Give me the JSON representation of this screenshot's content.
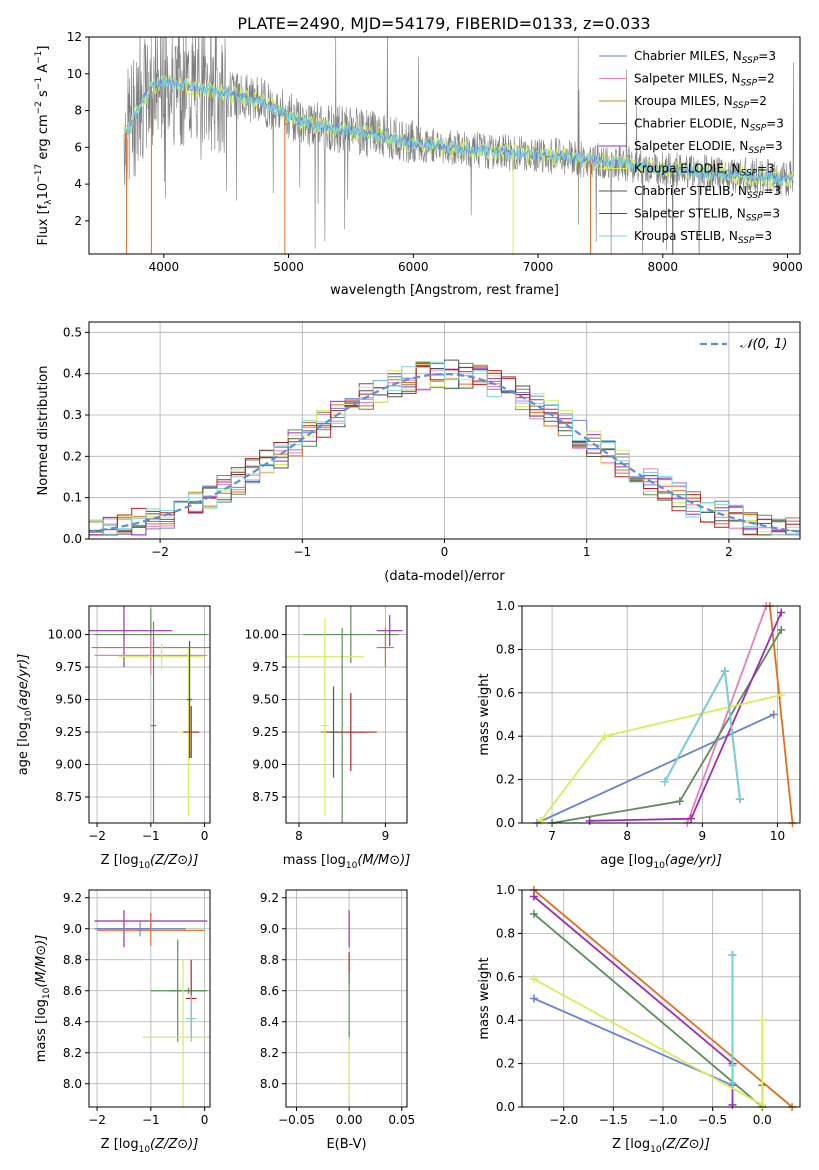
{
  "figure": {
    "title": "PLATE=2490, MJD=54179, FIBERID=0133, z=0.033"
  },
  "legend_spectrum": [
    {
      "label": "Chabrier MILES, N",
      "sub": "SSP",
      "tail": "=3",
      "color": "#6a82d9"
    },
    {
      "label": "Salpeter MILES, N",
      "sub": "SSP",
      "tail": "=2",
      "color": "#e87fbf"
    },
    {
      "label": "Kroupa MILES, N",
      "sub": "SSP",
      "tail": "=2",
      "color": "#c58a22"
    },
    {
      "label": "Chabrier ELODIE, N",
      "sub": "SSP",
      "tail": "=3",
      "color": "#5e8c5a"
    },
    {
      "label": "Salpeter ELODIE, N",
      "sub": "SSP",
      "tail": "=3",
      "color": "#9c2fb3"
    },
    {
      "label": "Kroupa ELODIE, N",
      "sub": "SSP",
      "tail": "=3",
      "color": "#d8ec5a"
    },
    {
      "label": "Chabrier STELIB, N",
      "sub": "SSP",
      "tail": "=3",
      "color": "#555555"
    },
    {
      "label": "Salpeter STELIB, N",
      "sub": "SSP",
      "tail": "=3",
      "color": "#b22222"
    },
    {
      "label": "Kroupa STELIB, N",
      "sub": "SSP",
      "tail": "=3",
      "color": "#79d3dc"
    }
  ],
  "legend_hist": {
    "label": "𝒩(0, 1)",
    "color": "#5b8fd6"
  },
  "colors": {
    "data": "#7f7f7f",
    "cmiles": "#6a82d9",
    "smiles": "#e87fbf",
    "kmiles": "#e07020",
    "celodie": "#5e8c5a",
    "selodie": "#9c2fb3",
    "kelodie": "#d8ec5a",
    "cstelib": "#555555",
    "sstelib": "#b22222",
    "kstelib": "#79d3dc",
    "gauss": "#5b8fd6",
    "grid": "#b0b0b0"
  },
  "chart_data": [
    {
      "id": "spectrum",
      "type": "line",
      "xlabel": "wavelength [Angstrom, rest frame]",
      "ylabel_main": "Flux [f",
      "ylabel_sub": "λ",
      "ylabel_tail": "10",
      "ylabel_exp": "−17",
      "ylabel_units": " erg cm",
      "ylabel_exp2": "−2",
      "ylabel_units2": " s",
      "ylabel_exp3": "−1",
      "ylabel_units3": " A",
      "ylabel_exp4": "−1",
      "ylabel_close": "]",
      "xlim": [
        3400,
        9100
      ],
      "ylim": [
        0.2,
        12
      ],
      "xticks": [
        4000,
        5000,
        6000,
        7000,
        8000,
        9000
      ],
      "yticks": [
        2,
        4,
        6,
        8,
        10,
        12
      ],
      "model_x": [
        3700,
        3800,
        3900,
        4000,
        4100,
        4200,
        4400,
        4600,
        4800,
        5000,
        5200,
        5400,
        5600,
        5800,
        6000,
        6200,
        6400,
        6600,
        6800,
        7000,
        7200,
        7400,
        7600,
        7800,
        8000,
        8200,
        8400,
        8600,
        8800,
        9000
      ],
      "model_y": [
        6.8,
        8.2,
        9.3,
        9.6,
        9.5,
        9.3,
        9.1,
        8.8,
        8.5,
        7.7,
        7.2,
        7.0,
        6.8,
        6.5,
        6.2,
        6.1,
        5.9,
        5.8,
        5.7,
        5.6,
        5.5,
        5.3,
        5.2,
        5.0,
        4.8,
        4.7,
        4.6,
        4.5,
        4.4,
        4.3
      ]
    },
    {
      "id": "residuals",
      "type": "histogram",
      "xlabel": "(data-model)/error",
      "ylabel": "Normed distribution",
      "xlim": [
        -2.5,
        2.5
      ],
      "ylim": [
        0,
        0.525
      ],
      "xticks": [
        -2,
        -1,
        0,
        1,
        2
      ],
      "yticks": [
        0.0,
        0.1,
        0.2,
        0.3,
        0.4,
        0.5
      ],
      "ytick_labels": [
        "0.0",
        "0.1",
        "0.2",
        "0.3",
        "0.4",
        "0.5"
      ],
      "bin_width": 0.1
    },
    {
      "id": "age_vs_Z",
      "type": "errorbar",
      "xlabel": "Z [log",
      "ylabel": "age  [log",
      "xlim": [
        -2.15,
        0.1
      ],
      "ylim": [
        8.55,
        10.22
      ],
      "xticks": [
        -2,
        -1,
        0
      ],
      "yticks": [
        8.75,
        9.0,
        9.25,
        9.5,
        9.75,
        10.0
      ],
      "ytick_labels": [
        "8.75",
        "9.00",
        "9.25",
        "9.50",
        "9.75",
        "10.00"
      ],
      "points": [
        {
          "x": -1.0,
          "y": 10.0,
          "xerr": 1.05,
          "yerr": 0.2,
          "series": "celodie"
        },
        {
          "x": -1.5,
          "y": 10.03,
          "xerr": 0.9,
          "yerr": 0.28,
          "series": "selodie"
        },
        {
          "x": -1.0,
          "y": 9.9,
          "xerr": 1.1,
          "yerr": 0.1,
          "series": "kmiles"
        },
        {
          "x": -1.0,
          "y": 9.84,
          "xerr": 1.05,
          "yerr": 0.15,
          "series": "smiles"
        },
        {
          "x": -0.8,
          "y": 9.83,
          "xerr": 0.8,
          "yerr": 0.1,
          "series": "kelodie"
        },
        {
          "x": -0.95,
          "y": 9.3,
          "xerr": 0.05,
          "yerr": 0.8,
          "series": "celodie"
        },
        {
          "x": -0.3,
          "y": 9.25,
          "xerr": 0.2,
          "yerr": 0.65,
          "series": "kelodie"
        },
        {
          "x": -0.28,
          "y": 9.5,
          "xerr": 0.05,
          "yerr": 0.45,
          "series": "cstelib"
        },
        {
          "x": -0.25,
          "y": 9.25,
          "xerr": 0.15,
          "yerr": 0.2,
          "series": "sstelib"
        }
      ]
    },
    {
      "id": "age_vs_mass",
      "type": "errorbar",
      "xlabel": "mass [log",
      "xlim": [
        7.85,
        9.25
      ],
      "ylim": [
        8.55,
        10.22
      ],
      "xticks": [
        8,
        9
      ],
      "yticks": [
        8.75,
        9.0,
        9.25,
        9.5,
        9.75,
        10.0
      ],
      "ytick_labels": [
        "8.75",
        "9.00",
        "9.25",
        "9.50",
        "9.75",
        "10.00"
      ],
      "points": [
        {
          "x": 8.6,
          "y": 10.0,
          "xerr": 0.55,
          "yerr": 0.22,
          "series": "celodie"
        },
        {
          "x": 9.05,
          "y": 10.03,
          "xerr": 0.15,
          "yerr": 0.12,
          "series": "selodie"
        },
        {
          "x": 8.3,
          "y": 9.83,
          "xerr": 0.45,
          "yerr": 0.3,
          "series": "kelodie"
        },
        {
          "x": 9.0,
          "y": 9.9,
          "xerr": 0.1,
          "yerr": 0.15,
          "series": "kmiles"
        },
        {
          "x": 8.5,
          "y": 9.25,
          "xerr": 0.25,
          "yerr": 0.8,
          "series": "celodie"
        },
        {
          "x": 8.6,
          "y": 9.25,
          "xerr": 0.3,
          "yerr": 0.3,
          "series": "sstelib"
        },
        {
          "x": 8.4,
          "y": 9.25,
          "xerr": 0.05,
          "yerr": 0.35,
          "series": "cstelib"
        },
        {
          "x": 8.3,
          "y": 9.3,
          "xerr": 0.05,
          "yerr": 0.7,
          "series": "kelodie"
        }
      ]
    },
    {
      "id": "weight_vs_age",
      "type": "line",
      "xlabel": "age  [log",
      "ylabel": "mass weight",
      "xlim": [
        6.6,
        10.3
      ],
      "ylim": [
        0,
        1
      ],
      "xticks": [
        7,
        8,
        9,
        10
      ],
      "yticks": [
        0.0,
        0.2,
        0.4,
        0.6,
        0.8,
        1.0
      ],
      "ytick_labels": [
        "0.0",
        "0.2",
        "0.4",
        "0.6",
        "0.8",
        "1.0"
      ],
      "series": [
        {
          "series": "cmiles",
          "x": [
            6.8,
            9.95
          ],
          "y": [
            0.0,
            0.5
          ]
        },
        {
          "series": "smiles",
          "x": [
            8.8,
            9.85
          ],
          "y": [
            0.0,
            1.0
          ]
        },
        {
          "series": "kmiles",
          "x": [
            9.9,
            10.2
          ],
          "y": [
            1.0,
            0.0
          ]
        },
        {
          "series": "celodie",
          "x": [
            7.0,
            8.7,
            10.05
          ],
          "y": [
            0.0,
            0.1,
            0.89
          ]
        },
        {
          "series": "selodie",
          "x": [
            7.5,
            8.85,
            10.05
          ],
          "y": [
            0.01,
            0.02,
            0.97
          ]
        },
        {
          "series": "kelodie",
          "x": [
            6.85,
            7.7,
            10.05
          ],
          "y": [
            0.01,
            0.4,
            0.59
          ]
        },
        {
          "series": "cstelib",
          "x": [
            8.5,
            9.3,
            9.5
          ],
          "y": [
            0.19,
            0.7,
            0.11
          ]
        },
        {
          "series": "kstelib",
          "x": [
            8.5,
            9.3,
            9.5
          ],
          "y": [
            0.19,
            0.7,
            0.11
          ]
        }
      ]
    },
    {
      "id": "mass_vs_Z",
      "type": "errorbar",
      "xlabel": "Z [log",
      "ylabel": "mass [log",
      "xlim": [
        -2.15,
        0.1
      ],
      "ylim": [
        7.85,
        9.25
      ],
      "xticks": [
        -2,
        -1,
        0
      ],
      "yticks": [
        8.0,
        8.2,
        8.4,
        8.6,
        8.8,
        9.0,
        9.2
      ],
      "ytick_labels": [
        "8.0",
        "8.2",
        "8.4",
        "8.6",
        "8.8",
        "9.0",
        "9.2"
      ],
      "points": [
        {
          "x": -1.0,
          "y": 9.05,
          "xerr": 1.05,
          "yerr": 0.05,
          "series": "selodie"
        },
        {
          "x": -1.5,
          "y": 9.0,
          "xerr": 0.5,
          "yerr": 0.12,
          "series": "selodie"
        },
        {
          "x": -1.0,
          "y": 8.99,
          "xerr": 1.0,
          "yerr": 0.1,
          "series": "kmiles"
        },
        {
          "x": -1.2,
          "y": 9.0,
          "xerr": 0.85,
          "yerr": 0.05,
          "series": "cmiles"
        },
        {
          "x": -0.5,
          "y": 8.6,
          "xerr": 0.5,
          "yerr": 0.33,
          "series": "celodie"
        },
        {
          "x": -0.3,
          "y": 8.6,
          "xerr": 0.35,
          "yerr": 0.02,
          "series": "celodie"
        },
        {
          "x": -0.4,
          "y": 8.3,
          "xerr": 0.75,
          "yerr": 0.5,
          "series": "kelodie"
        },
        {
          "x": -0.25,
          "y": 8.55,
          "xerr": 0.1,
          "yerr": 0.25,
          "series": "sstelib"
        },
        {
          "x": -0.25,
          "y": 8.42,
          "xerr": 0.1,
          "yerr": 0.15,
          "series": "kstelib"
        }
      ]
    },
    {
      "id": "mass_vs_ebv",
      "type": "errorbar",
      "xlabel": "E(B-V)",
      "xlim": [
        -0.06,
        0.055
      ],
      "ylim": [
        7.85,
        9.25
      ],
      "xticks": [
        -0.05,
        0.0,
        0.05
      ],
      "xtick_labels": [
        "−0.05",
        "0.00",
        "0.05"
      ],
      "yticks": [
        8.0,
        8.2,
        8.4,
        8.6,
        8.8,
        9.0,
        9.2
      ],
      "ytick_labels": [
        "8.0",
        "8.2",
        "8.4",
        "8.6",
        "8.8",
        "9.0",
        "9.2"
      ],
      "points": [
        {
          "x": 0.0,
          "y": 9.0,
          "xerr": 0.0,
          "yerr": 0.12,
          "series": "selodie"
        },
        {
          "x": 0.0,
          "y": 8.75,
          "xerr": 0.0,
          "yerr": 0.1,
          "series": "sstelib"
        },
        {
          "x": 0.0,
          "y": 8.5,
          "xerr": 0.0,
          "yerr": 0.22,
          "series": "celodie"
        },
        {
          "x": 0.0,
          "y": 8.1,
          "xerr": 0.0,
          "yerr": 0.2,
          "series": "kelodie"
        }
      ]
    },
    {
      "id": "weight_vs_Z",
      "type": "line",
      "xlabel": "Z [log",
      "ylabel": "mass weight",
      "xlim": [
        -2.42,
        0.38
      ],
      "ylim": [
        0,
        1
      ],
      "xticks": [
        -2.0,
        -1.5,
        -1.0,
        -0.5,
        0.0
      ],
      "xtick_labels": [
        "−2.0",
        "−1.5",
        "−1.0",
        "−0.5",
        "0.0"
      ],
      "yticks": [
        0.0,
        0.2,
        0.4,
        0.6,
        0.8,
        1.0
      ],
      "ytick_labels": [
        "0.0",
        "0.2",
        "0.4",
        "0.6",
        "0.8",
        "1.0"
      ],
      "series": [
        {
          "series": "cmiles",
          "x": [
            -2.3,
            -0.3
          ],
          "y": [
            0.5,
            0.1
          ]
        },
        {
          "series": "kmiles",
          "x": [
            -2.3,
            0.3
          ],
          "y": [
            1.0,
            0.0
          ]
        },
        {
          "series": "celodie",
          "x": [
            -2.3,
            0.0,
            0.0
          ],
          "y": [
            0.89,
            0.0,
            0.1
          ]
        },
        {
          "series": "selodie",
          "x": [
            -2.3,
            -0.3,
            -0.3
          ],
          "y": [
            0.97,
            0.2,
            0.01
          ]
        },
        {
          "series": "kelodie",
          "x": [
            -2.3,
            0.0,
            0.0
          ],
          "y": [
            0.59,
            0.01,
            0.4
          ]
        },
        {
          "series": "cstelib",
          "x": [
            -0.3,
            -0.3,
            -0.3
          ],
          "y": [
            0.11,
            0.7,
            0.19
          ]
        },
        {
          "series": "kstelib",
          "x": [
            -0.3,
            -0.3,
            -0.3
          ],
          "y": [
            0.11,
            0.7,
            0.19
          ]
        }
      ]
    }
  ]
}
